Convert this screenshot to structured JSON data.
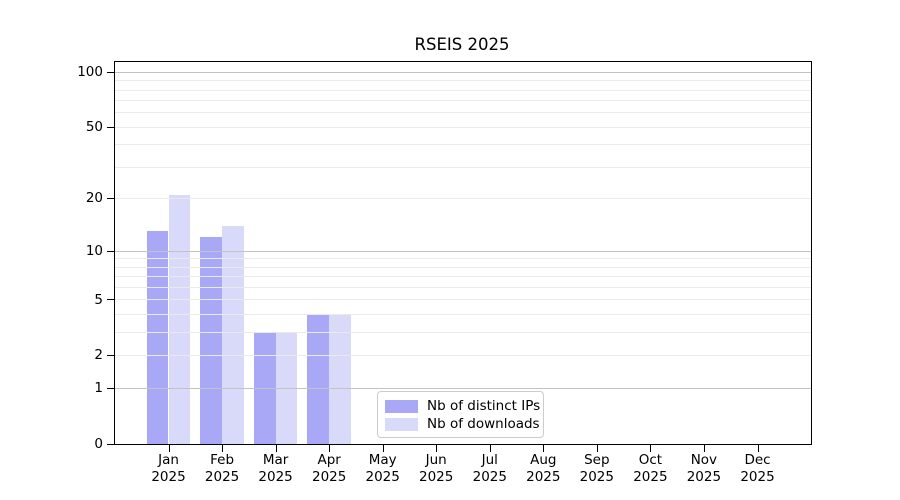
{
  "chart_data": {
    "type": "bar",
    "title": "RSEIS 2025",
    "x_categories": [
      "Jan",
      "Feb",
      "Mar",
      "Apr",
      "May",
      "Jun",
      "Jul",
      "Aug",
      "Sep",
      "Oct",
      "Nov",
      "Dec"
    ],
    "x_year_label": "2025",
    "y_ticks": [
      0,
      1,
      2,
      5,
      10,
      20,
      50,
      100
    ],
    "y_scale": "log1p",
    "y_max": 113,
    "grid_major": [
      1,
      10,
      100
    ],
    "grid_minor": [
      2,
      3,
      4,
      5,
      6,
      7,
      8,
      9,
      20,
      30,
      40,
      50,
      60,
      70,
      80,
      90
    ],
    "series": [
      {
        "name": "Nb of distinct IPs",
        "slug": "nb-distinct-ips",
        "color": "#a8a8f6",
        "values": [
          13,
          12,
          3,
          4,
          0,
          0,
          0,
          0,
          0,
          0,
          0,
          0
        ]
      },
      {
        "name": "Nb of downloads",
        "slug": "nb-downloads",
        "color": "#d9d9f9",
        "values": [
          21,
          14,
          3,
          4,
          0,
          0,
          0,
          0,
          0,
          0,
          0,
          0
        ]
      }
    ],
    "legend_position": "bottom-center-inside",
    "colors": {
      "grid_major": "#c3c3c3",
      "grid_minor": "#eaeaea",
      "axis": "#000000",
      "background": "#ffffff"
    }
  }
}
